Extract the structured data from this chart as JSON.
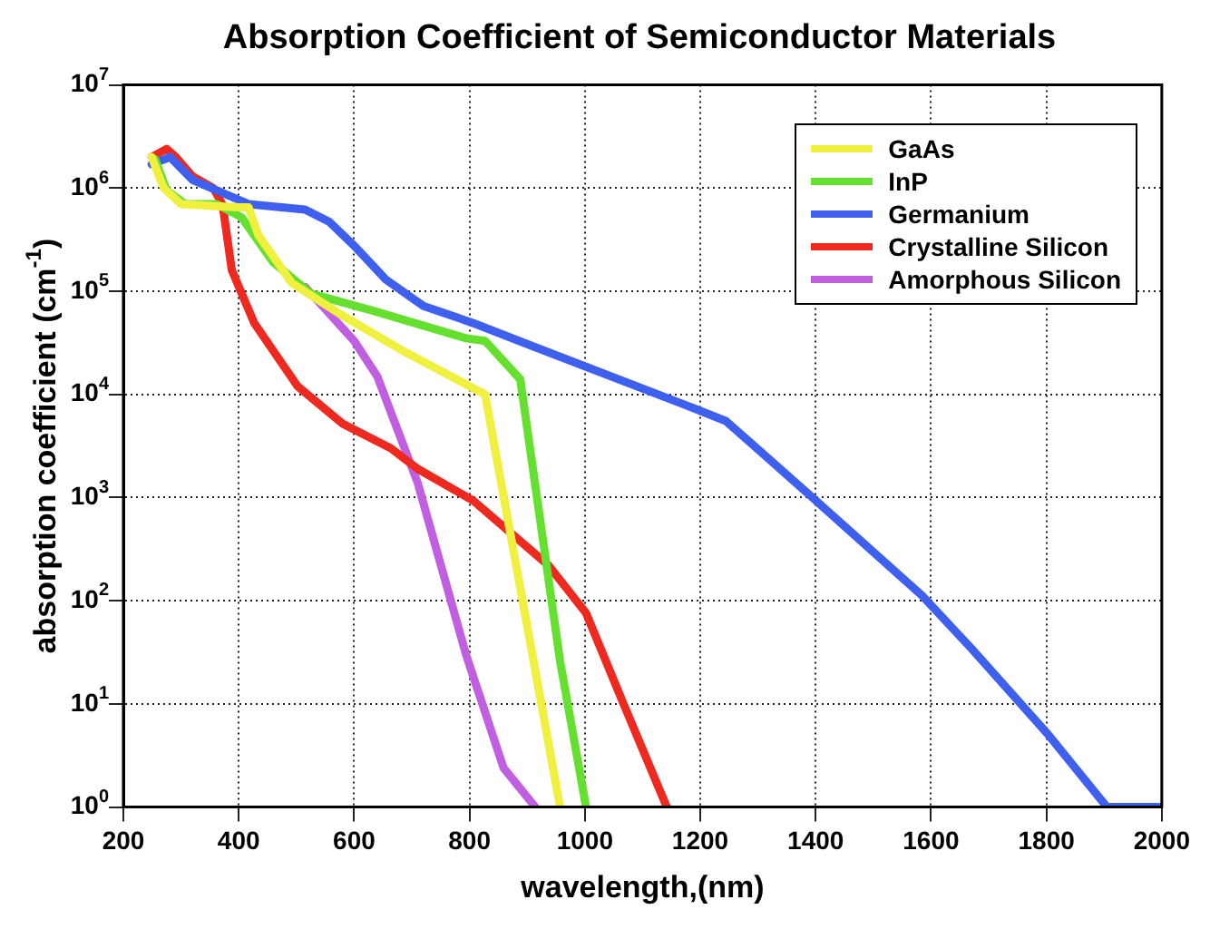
{
  "chart_data": {
    "type": "line",
    "title": "Absorption Coefficient of Semiconductor Materials",
    "xlabel": "wavelength,(nm)",
    "ylabel": "absorption coefficient (cm$^{-1}$)",
    "log": "y",
    "grid": true,
    "legend": "top right",
    "marker": "none",
    "line_style": "solid",
    "xlim": [
      200,
      2000
    ],
    "xticks": [
      200,
      400,
      600,
      800,
      1000,
      1200,
      1400,
      1600,
      1800,
      2000
    ],
    "ylim": [
      1,
      10000000
    ],
    "yticks": [
      {
        "value": 1,
        "label": "10$^{0}$"
      },
      {
        "value": 10,
        "label": "10$^{1}$"
      },
      {
        "value": 100,
        "label": "10$^{2}$"
      },
      {
        "value": 1000,
        "label": "10$^{3}$"
      },
      {
        "value": 10000,
        "label": "10$^{4}$"
      },
      {
        "value": 100000,
        "label": "10$^{5}$"
      },
      {
        "value": 1000000,
        "label": "10$^{6}$"
      },
      {
        "value": 10000000,
        "label": "10$^{7}$"
      }
    ],
    "series": [
      {
        "name": "GaAs",
        "color": "#f0f040",
        "x": [
          249,
          270,
          300,
          400,
          417,
          434,
          492,
          580,
          687,
          827,
          957
        ],
        "values": [
          2000000,
          1000000,
          700000,
          650000,
          650000,
          350000,
          120000,
          58000,
          26000,
          10000,
          1
        ]
      },
      {
        "name": "InP",
        "color": "#66e030",
        "x": [
          255,
          275,
          307,
          362,
          405,
          460,
          525,
          632,
          794,
          827,
          888,
          957,
          1002
        ],
        "values": [
          1900000,
          950000,
          700000,
          700000,
          520000,
          190000,
          95000,
          65000,
          35000,
          33000,
          14000,
          26,
          1
        ]
      },
      {
        "name": "Germanium",
        "color": "#3f5fef",
        "x": [
          249,
          281,
          320,
          417,
          515,
          557,
          599,
          655,
          720,
          807,
          905,
          1174,
          1245,
          1401,
          1586,
          1671,
          1801,
          1905,
          2000
        ],
        "values": [
          1700000,
          2000000,
          1200000,
          700000,
          620000,
          470000,
          280000,
          130000,
          72000,
          49000,
          30000,
          7900,
          5500,
          930,
          110,
          34,
          5.2,
          1,
          1
        ]
      },
      {
        "name": "Crystalline Silicon",
        "color": "#ee2a20",
        "x": [
          249,
          275,
          291,
          320,
          356,
          372,
          388,
          427,
          502,
          580,
          664,
          710,
          807,
          937,
          1002,
          1067,
          1142
        ],
        "values": [
          2000000,
          2400000,
          2000000,
          1300000,
          1000000,
          690000,
          160000,
          49000,
          12000,
          5200,
          3000,
          1900,
          930,
          220,
          76,
          10,
          1
        ]
      },
      {
        "name": "Amorphous Silicon",
        "color": "#c060e0",
        "x": [
          515,
          600,
          640,
          710,
          794,
          859,
          914
        ],
        "values": [
          110000,
          33000,
          15000,
          1400,
          30,
          2.4,
          1
        ]
      }
    ]
  }
}
